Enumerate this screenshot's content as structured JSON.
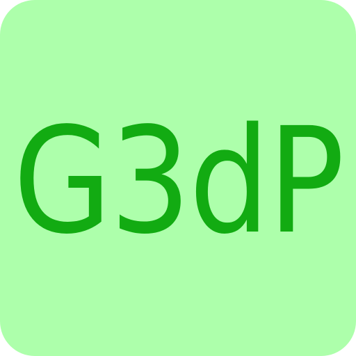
{
  "icon": {
    "label": "G3dP",
    "background_color": "#adffab",
    "text_color": "#12ab12"
  }
}
